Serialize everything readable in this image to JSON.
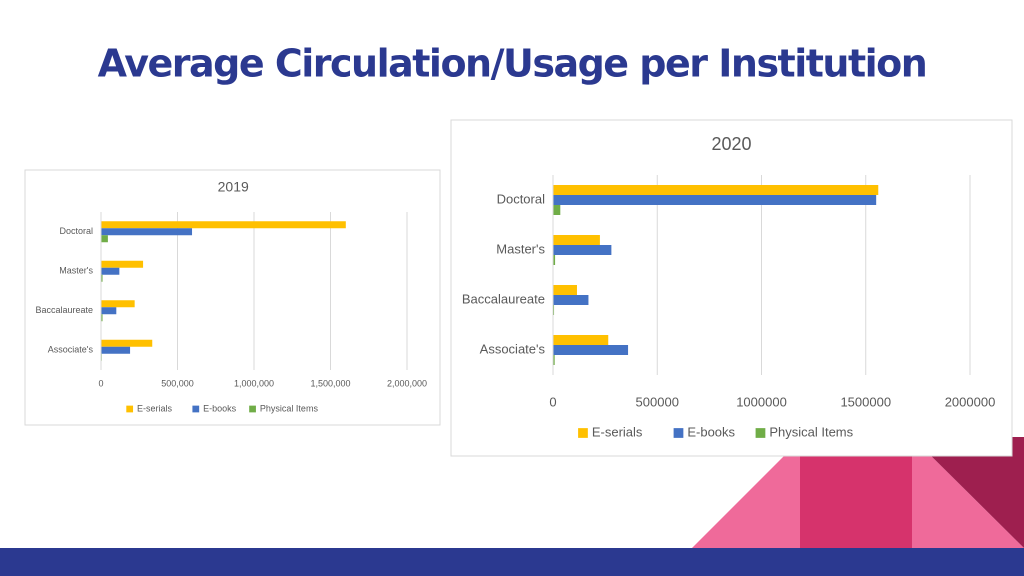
{
  "slide_title": "Average Circulation/Usage per Institution",
  "chart_data": [
    {
      "type": "bar",
      "horizontal": true,
      "title": "2019",
      "categories": [
        "Doctoral",
        "Master's",
        "Baccalaureate",
        "Associate's"
      ],
      "series": [
        {
          "name": "E-serials",
          "color": "#ffc000",
          "values": [
            1600000,
            275000,
            220000,
            335000
          ]
        },
        {
          "name": "E-books",
          "color": "#4472c4",
          "values": [
            595000,
            120000,
            100000,
            190000
          ]
        },
        {
          "name": "Physical Items",
          "color": "#70ad47",
          "values": [
            45000,
            10000,
            10000,
            5000
          ]
        }
      ],
      "xlim": [
        0,
        2000000
      ],
      "xticks": [
        0,
        {
          "value": 500000,
          "label": "500,000"
        },
        {
          "value": 1000000,
          "label": "1,000,000"
        },
        {
          "value": 1500000,
          "label": "1,500,000"
        },
        {
          "value": 2000000,
          "label": "2,000,000"
        }
      ],
      "grid": true,
      "legend": "bottom"
    },
    {
      "type": "bar",
      "horizontal": true,
      "title": "2020",
      "categories": [
        "Doctoral",
        "Master's",
        "Baccalaureate",
        "Associate's"
      ],
      "series": [
        {
          "name": "E-serials",
          "color": "#ffc000",
          "values": [
            1560000,
            225000,
            115000,
            265000
          ]
        },
        {
          "name": "E-books",
          "color": "#4472c4",
          "values": [
            1550000,
            280000,
            170000,
            360000
          ]
        },
        {
          "name": "Physical Items",
          "color": "#70ad47",
          "values": [
            35000,
            10000,
            5000,
            8000
          ]
        }
      ],
      "xlim": [
        0,
        2000000
      ],
      "xticks": [
        0,
        500000,
        1000000,
        1500000,
        2000000
      ],
      "grid": true,
      "legend": "bottom"
    }
  ]
}
